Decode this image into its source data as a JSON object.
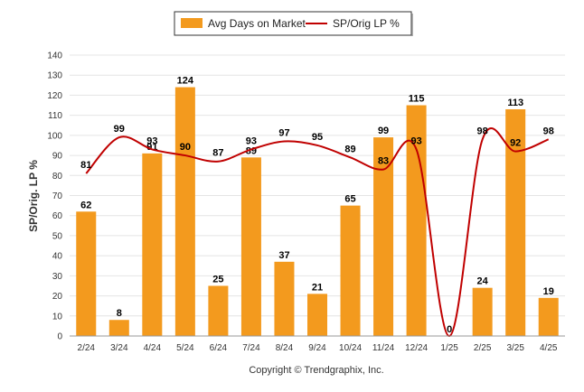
{
  "chart_data": {
    "type": "bar",
    "categories": [
      "2/24",
      "3/24",
      "4/24",
      "5/24",
      "6/24",
      "7/24",
      "8/24",
      "9/24",
      "10/24",
      "11/24",
      "12/24",
      "1/25",
      "2/25",
      "3/25",
      "4/25"
    ],
    "series": [
      {
        "name": "Avg Days on Market",
        "type": "bar",
        "color": "#F39A1E",
        "values": [
          62,
          8,
          91,
          124,
          25,
          89,
          37,
          21,
          65,
          99,
          115,
          0,
          24,
          113,
          19
        ]
      },
      {
        "name": "SP/Orig LP %",
        "type": "line",
        "color": "#C00000",
        "values": [
          81,
          99,
          93,
          90,
          87,
          93,
          97,
          95,
          89,
          83,
          93,
          null,
          98,
          92,
          98
        ]
      }
    ],
    "ylabel": "SP/Orig. LP %",
    "ylim": [
      0,
      140
    ],
    "yticks": [
      0,
      10,
      20,
      30,
      40,
      50,
      60,
      70,
      80,
      90,
      100,
      110,
      120,
      130,
      140
    ],
    "grid": true,
    "legend": "top-center"
  },
  "legend": {
    "bar_label": "Avg Days on Market",
    "line_label": "SP/Orig LP %"
  },
  "footer": {
    "copyright": "Copyright © Trendgraphix, Inc."
  }
}
